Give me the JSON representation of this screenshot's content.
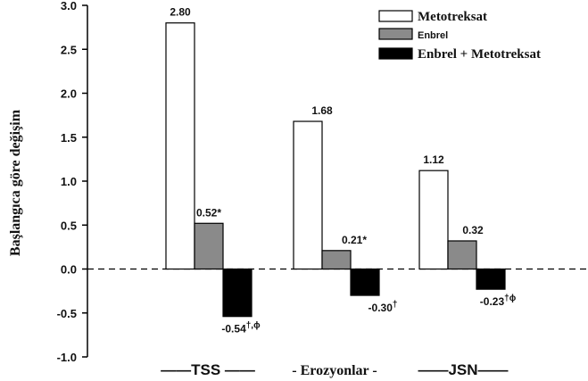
{
  "chart_data": {
    "type": "bar",
    "ylabel": "Başlangıca göre değişim",
    "ylim": [
      -1.0,
      3.0
    ],
    "yticks": [
      "3.0",
      "2.5",
      "2.0",
      "1.5",
      "1.0",
      "0.5",
      "0.0",
      "-0.5",
      "-1.0"
    ],
    "categories": [
      "TSS",
      "Erozyonlar",
      "JSN"
    ],
    "category_labels": [
      "——TSS ——",
      "- Erozyonlar -",
      "——JSN——"
    ],
    "series": [
      {
        "name": "Metotreksat",
        "color": "#ffffff",
        "values": [
          2.8,
          1.68,
          1.12
        ],
        "labels": [
          "2.80",
          "1.68",
          "1.12"
        ],
        "label_marks": [
          "",
          "",
          ""
        ]
      },
      {
        "name": "Enbrel",
        "color": "#8a8a8a",
        "values": [
          0.52,
          0.21,
          0.32
        ],
        "labels": [
          "0.52*",
          "0.21*",
          "0.32"
        ],
        "label_marks": [
          "",
          "",
          ""
        ]
      },
      {
        "name": "Enbrel + Metotreksat",
        "color": "#000000",
        "values": [
          -0.54,
          -0.3,
          -0.23
        ],
        "labels": [
          "-0.54",
          "-0.30",
          "-0.23"
        ],
        "label_marks": [
          "†,ϕ",
          "†",
          "†ϕ"
        ]
      }
    ],
    "legend_position": "top-right",
    "zero_line": "dashed"
  }
}
